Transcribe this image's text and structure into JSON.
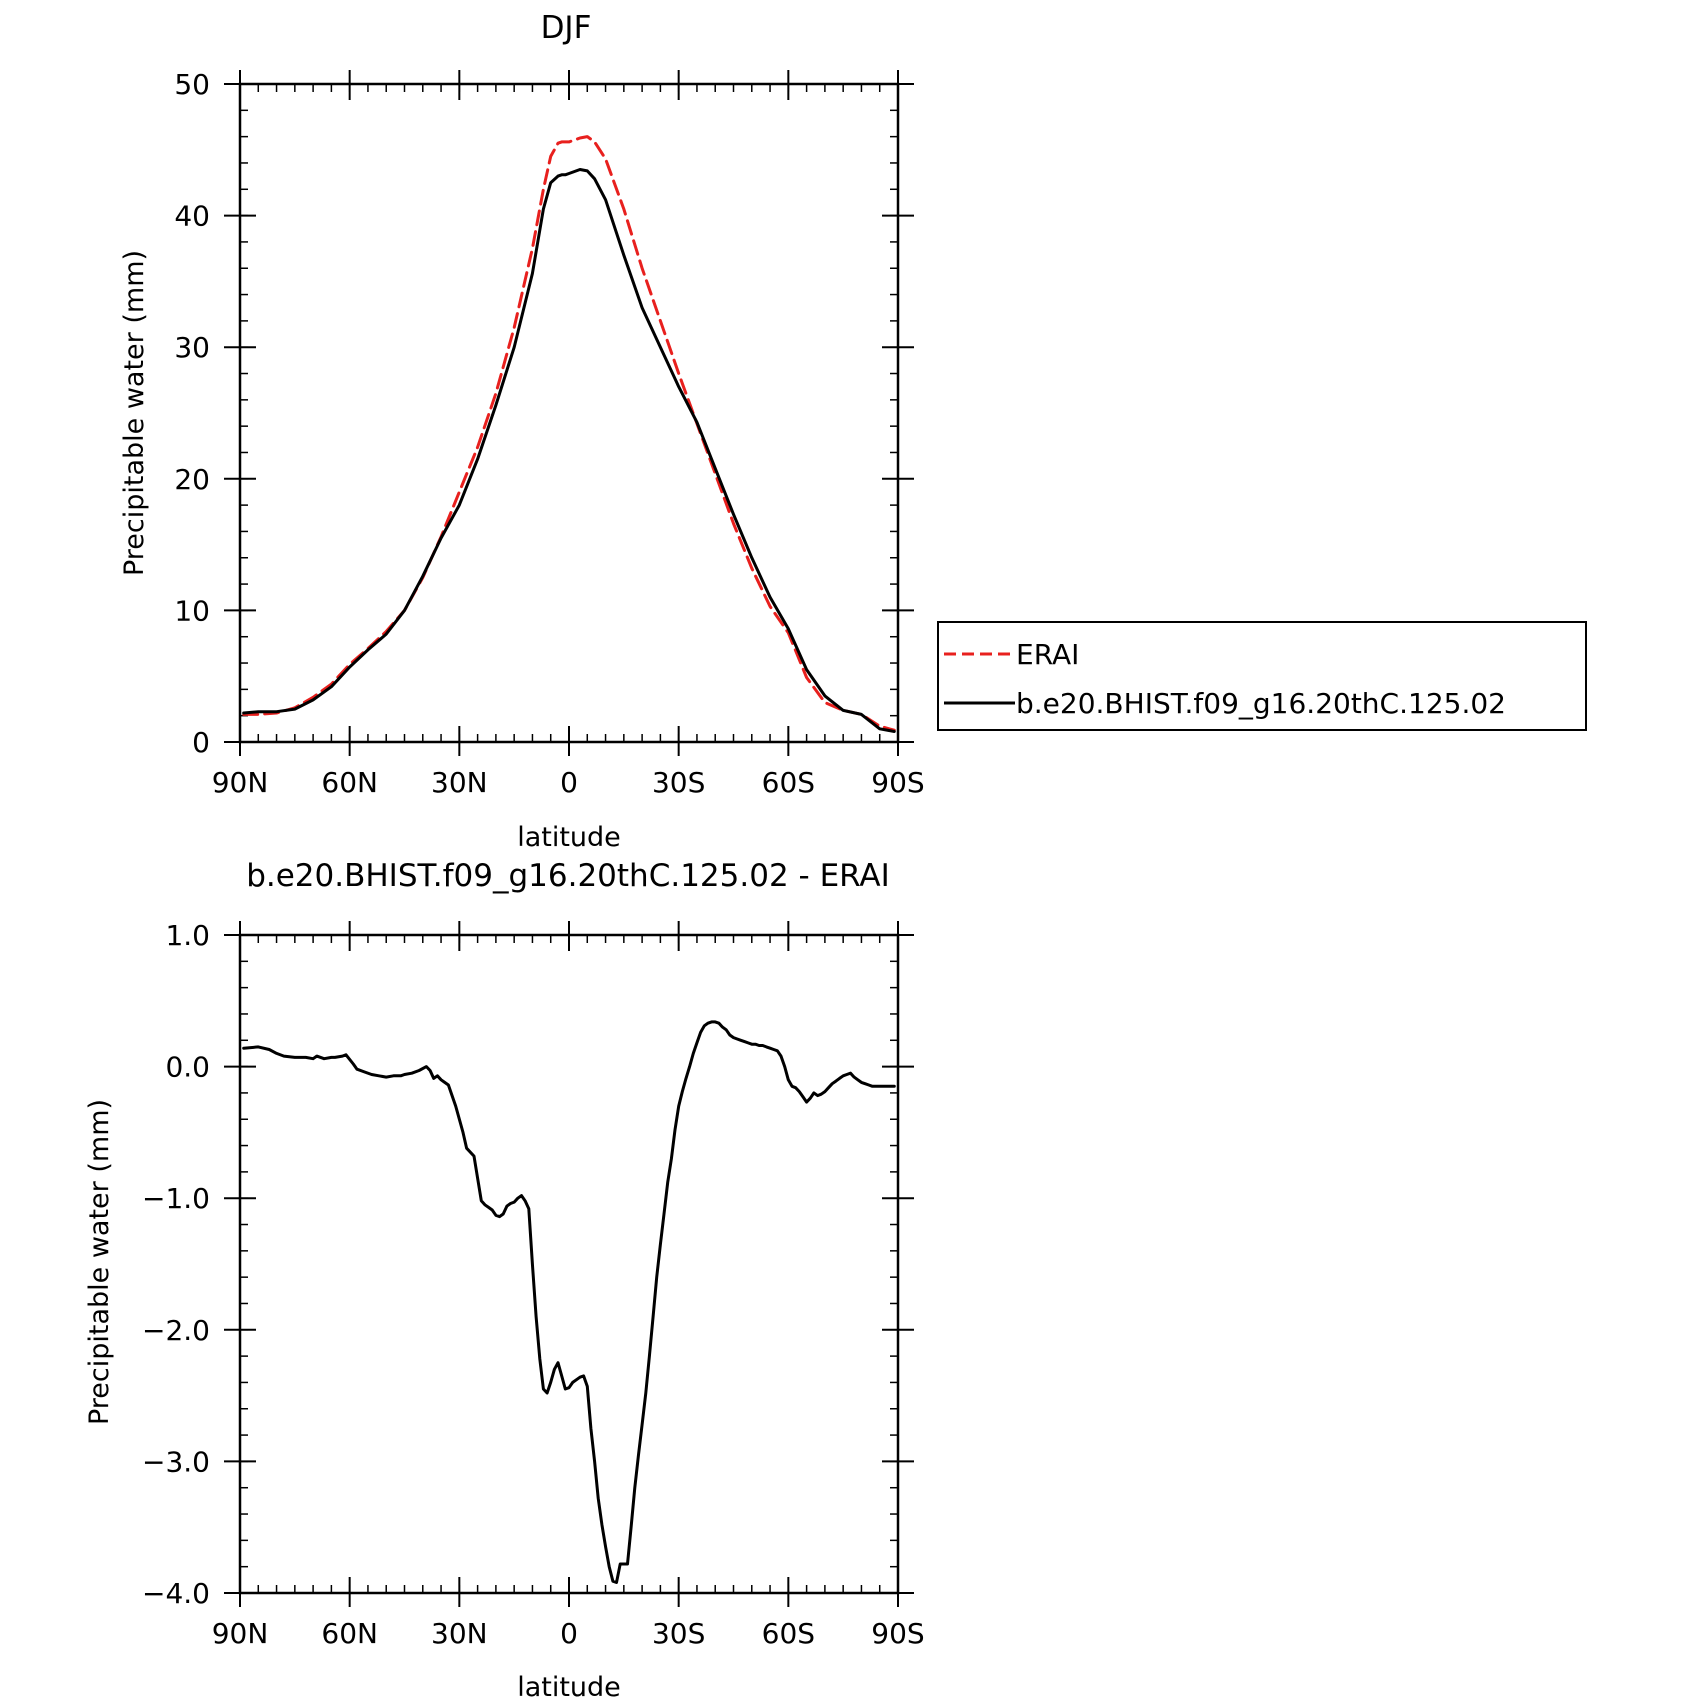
{
  "chart_data": [
    {
      "type": "line",
      "title": "DJF",
      "xlabel": "latitude",
      "ylabel": "Precipitable water (mm)",
      "xlim": [
        90,
        -90
      ],
      "ylim": [
        0,
        50
      ],
      "x_ticks": [
        90,
        60,
        30,
        0,
        -30,
        -60,
        -90
      ],
      "x_tick_labels": [
        "90N",
        "60N",
        "30N",
        "0",
        "30S",
        "60S",
        "90S"
      ],
      "y_ticks": [
        0,
        10,
        20,
        30,
        40,
        50
      ],
      "y_tick_labels": [
        "0",
        "10",
        "20",
        "30",
        "40",
        "50"
      ],
      "legend": {
        "placement": "right",
        "entries": [
          "ERAI",
          "b.e20.BHIST.f09_g16.20thC.125.02"
        ]
      },
      "series": [
        {
          "name": "ERAI",
          "color": "#e8201e",
          "dash": "dashed",
          "x": [
            89,
            85,
            80,
            75,
            70,
            65,
            60,
            55,
            50,
            45,
            40,
            35,
            30,
            25,
            20,
            15,
            10,
            7,
            5,
            3,
            2,
            1,
            0,
            -3,
            -5,
            -7,
            -10,
            -15,
            -20,
            -25,
            -30,
            -35,
            -40,
            -45,
            -50,
            -55,
            -60,
            -65,
            -70,
            -75,
            -80,
            -85,
            -89
          ],
          "y": [
            2.1,
            2.1,
            2.2,
            2.6,
            3.4,
            4.4,
            5.9,
            7.1,
            8.4,
            10.0,
            12.5,
            15.6,
            19.0,
            22.4,
            26.5,
            31.5,
            37.5,
            42.0,
            44.5,
            45.5,
            45.6,
            45.6,
            45.6,
            45.9,
            46.0,
            45.6,
            44.3,
            40.5,
            36.0,
            32.0,
            28.0,
            24.2,
            20.4,
            16.6,
            13.2,
            10.3,
            8.3,
            4.9,
            3.0,
            2.4,
            2.1,
            1.2,
            0.9
          ]
        },
        {
          "name": "b.e20.BHIST.f09_g16.20thC.125.02",
          "color": "#000000",
          "dash": "solid",
          "x": [
            89,
            85,
            80,
            75,
            70,
            65,
            60,
            55,
            50,
            45,
            40,
            35,
            30,
            25,
            20,
            15,
            10,
            7,
            5,
            3,
            2,
            1,
            0,
            -3,
            -5,
            -7,
            -10,
            -15,
            -20,
            -25,
            -30,
            -35,
            -40,
            -45,
            -50,
            -55,
            -60,
            -65,
            -70,
            -75,
            -80,
            -85,
            -89
          ],
          "y": [
            2.2,
            2.3,
            2.3,
            2.5,
            3.2,
            4.2,
            5.7,
            7.0,
            8.2,
            10.0,
            12.6,
            15.5,
            18.0,
            21.5,
            25.6,
            30.0,
            35.6,
            40.5,
            42.5,
            43.0,
            43.1,
            43.1,
            43.2,
            43.5,
            43.4,
            42.8,
            41.2,
            37.0,
            33.0,
            30.0,
            27.0,
            24.3,
            20.8,
            17.3,
            14.0,
            11.0,
            8.6,
            5.5,
            3.5,
            2.4,
            2.1,
            1.0,
            0.8
          ]
        }
      ]
    },
    {
      "type": "line",
      "title": "b.e20.BHIST.f09_g16.20thC.125.02 - ERAI",
      "xlabel": "latitude",
      "ylabel": "Precipitable water (mm)",
      "xlim": [
        90,
        -90
      ],
      "ylim": [
        -4.0,
        1.0
      ],
      "x_ticks": [
        90,
        60,
        30,
        0,
        -30,
        -60,
        -90
      ],
      "x_tick_labels": [
        "90N",
        "60N",
        "30N",
        "0",
        "30S",
        "60S",
        "90S"
      ],
      "y_ticks": [
        1.0,
        0.0,
        -1.0,
        -2.0,
        -3.0,
        -4.0
      ],
      "y_tick_labels": [
        "1.0",
        "0.0",
        "−1.0",
        "−2.0",
        "−3.0",
        "−4.0"
      ],
      "series": [
        {
          "color": "#000000",
          "x": [
            89,
            85,
            82,
            80,
            78,
            75,
            72,
            70,
            69,
            67,
            65,
            64,
            62,
            61,
            59,
            58,
            56,
            54,
            52,
            50,
            48,
            46,
            45,
            43,
            41,
            39,
            38,
            37,
            36,
            35,
            34,
            33,
            31,
            29,
            28,
            26,
            24,
            23,
            22,
            21,
            20,
            19,
            18,
            17,
            16,
            15,
            14,
            13,
            12,
            11,
            10,
            9,
            8,
            7,
            6,
            5,
            4,
            3,
            2,
            1,
            0,
            -1,
            -2,
            -3,
            -4,
            -5,
            -6,
            -7,
            -8,
            -9,
            -10,
            -11,
            -12,
            -13,
            -14,
            -15,
            -16,
            -17,
            -18,
            -19,
            -20,
            -21,
            -22,
            -23,
            -24,
            -25,
            -26,
            -27,
            -28,
            -29,
            -30,
            -31,
            -32,
            -33,
            -34,
            -35,
            -36,
            -37,
            -38,
            -39,
            -40,
            -41,
            -42,
            -43,
            -44,
            -45,
            -46,
            -47,
            -48,
            -49,
            -50,
            -51,
            -52,
            -53,
            -54,
            -55,
            -56,
            -57,
            -58,
            -59,
            -60,
            -61,
            -62,
            -63,
            -64,
            -65,
            -66,
            -67,
            -68,
            -69,
            -70,
            -71,
            -72,
            -73,
            -74,
            -75,
            -76,
            -77,
            -78,
            -79,
            -80,
            -81,
            -82,
            -83,
            -84,
            -85,
            -86,
            -87,
            -88,
            -89
          ],
          "y": [
            0.14,
            0.15,
            0.13,
            0.1,
            0.08,
            0.07,
            0.07,
            0.06,
            0.08,
            0.06,
            0.07,
            0.07,
            0.08,
            0.09,
            0.02,
            -0.02,
            -0.04,
            -0.06,
            -0.07,
            -0.08,
            -0.07,
            -0.07,
            -0.06,
            -0.05,
            -0.03,
            0.0,
            -0.03,
            -0.09,
            -0.07,
            -0.1,
            -0.12,
            -0.14,
            -0.3,
            -0.5,
            -0.62,
            -0.68,
            -1.02,
            -1.05,
            -1.07,
            -1.09,
            -1.13,
            -1.14,
            -1.12,
            -1.06,
            -1.04,
            -1.03,
            -1.0,
            -0.98,
            -1.02,
            -1.08,
            -1.5,
            -1.9,
            -2.22,
            -2.45,
            -2.48,
            -2.4,
            -2.3,
            -2.25,
            -2.35,
            -2.45,
            -2.44,
            -2.4,
            -2.38,
            -2.36,
            -2.35,
            -2.43,
            -2.75,
            -3.0,
            -3.28,
            -3.48,
            -3.65,
            -3.8,
            -3.91,
            -3.92,
            -3.78,
            -3.78,
            -3.78,
            -3.5,
            -3.2,
            -2.95,
            -2.72,
            -2.48,
            -2.2,
            -1.9,
            -1.6,
            -1.35,
            -1.12,
            -0.88,
            -0.7,
            -0.48,
            -0.3,
            -0.19,
            -0.09,
            0.0,
            0.1,
            0.18,
            0.26,
            0.31,
            0.33,
            0.34,
            0.34,
            0.33,
            0.3,
            0.28,
            0.24,
            0.22,
            0.21,
            0.2,
            0.19,
            0.18,
            0.17,
            0.17,
            0.16,
            0.16,
            0.15,
            0.14,
            0.13,
            0.12,
            0.08,
            0.0,
            -0.1,
            -0.15,
            -0.16,
            -0.19,
            -0.23,
            -0.27,
            -0.24,
            -0.2,
            -0.22,
            -0.21,
            -0.19,
            -0.16,
            -0.13,
            -0.11,
            -0.09,
            -0.07,
            -0.06,
            -0.05,
            -0.08,
            -0.1,
            -0.12,
            -0.13,
            -0.14,
            -0.15,
            -0.15,
            -0.15,
            -0.15,
            -0.15,
            -0.15,
            -0.15
          ]
        }
      ]
    }
  ]
}
